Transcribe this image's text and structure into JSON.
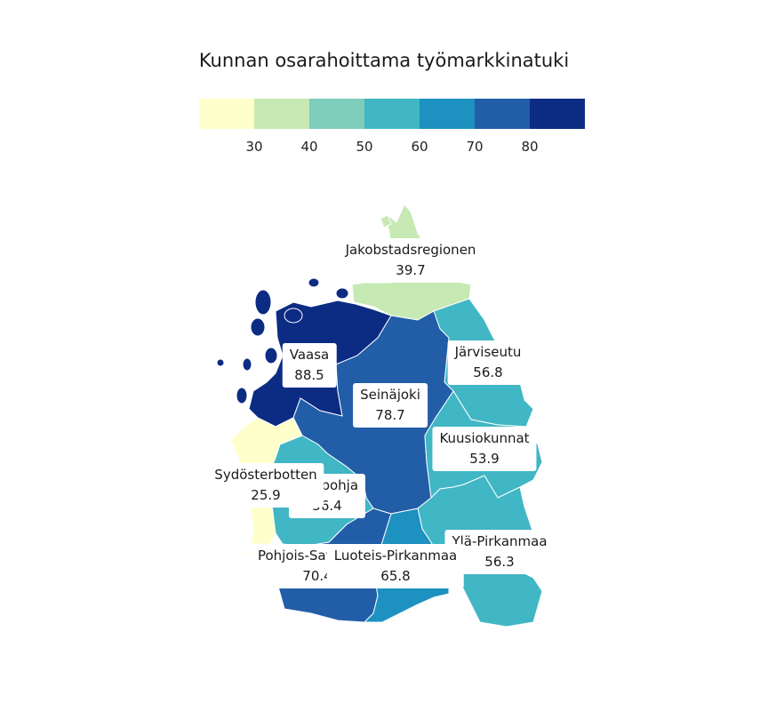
{
  "title": "Kunnan osarahoittama työmarkkinatuki",
  "legend": {
    "colors": [
      "#ffffcc",
      "#c7e9b4",
      "#7fcdbb",
      "#41b6c4",
      "#1d91c0",
      "#225ea8",
      "#0c2c84"
    ],
    "ticks": [
      "30",
      "40",
      "50",
      "60",
      "70",
      "80"
    ]
  },
  "regions": [
    {
      "name": "Jakobstadsregionen",
      "value": "39.7",
      "color": "#c7e9b4"
    },
    {
      "name": "Vaasa",
      "value": "88.5",
      "color": "#0c2c84"
    },
    {
      "name": "Järviseutu",
      "value": "56.8",
      "color": "#41b6c4"
    },
    {
      "name": "Seinäjoki",
      "value": "78.7",
      "color": "#225ea8"
    },
    {
      "name": "Kuusiokunnat",
      "value": "53.9",
      "color": "#41b6c4"
    },
    {
      "name": "Sydösterbotten",
      "value": "25.9",
      "color": "#ffffcc"
    },
    {
      "name": "Suupohja",
      "value": "56.4",
      "color": "#41b6c4"
    },
    {
      "name": "Ylä-Pirkanmaa",
      "value": "56.3",
      "color": "#41b6c4"
    },
    {
      "name": "Pohjois-Satakunta",
      "value": "70.4",
      "color": "#225ea8"
    },
    {
      "name": "Luoteis-Pirkanmaa",
      "value": "65.8",
      "color": "#1d91c0"
    }
  ]
}
